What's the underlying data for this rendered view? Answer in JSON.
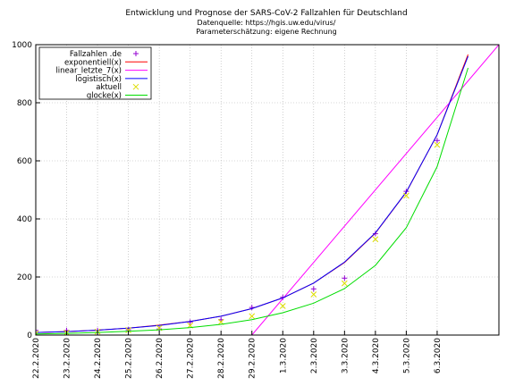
{
  "chart_data": {
    "type": "line",
    "title": "Entwicklung und Prognose der SARS-CoV-2 Fallzahlen für Deutschland",
    "subtitle_lines": [
      "Datenquelle: https://hgis.uw.edu/virus/",
      "Parameterschätzung: eigene Rechnung"
    ],
    "xlabel": "",
    "ylabel": "",
    "categories": [
      "22.2.2020",
      "23.2.2020",
      "24.2.2020",
      "25.2.2020",
      "26.2.2020",
      "27.2.2020",
      "28.2.2020",
      "29.2.2020",
      "1.3.2020",
      "2.3.2020",
      "3.3.2020",
      "4.3.2020",
      "5.3.2020",
      "6.3.2020"
    ],
    "xlim": [
      0,
      15
    ],
    "ylim": [
      0,
      1000
    ],
    "yticks": [
      0,
      200,
      400,
      600,
      800,
      1000
    ],
    "grid": true,
    "legend_position": "top-left",
    "series": [
      {
        "name": "Fallzahlen .de",
        "kind": "points",
        "marker": "plus",
        "color": "#9400d3",
        "x": [
          0,
          1,
          2,
          3,
          4,
          5,
          6,
          7,
          8,
          9,
          10,
          11,
          12,
          13
        ],
        "y": [
          16,
          16,
          16,
          18,
          21,
          45,
          53,
          95,
          130,
          159,
          196,
          349,
          495,
          670
        ]
      },
      {
        "name": "exponentiell(x)",
        "kind": "line",
        "color": "#ff0000",
        "x": [
          0,
          1,
          2,
          3,
          4,
          5,
          6,
          7,
          8,
          9,
          10,
          11,
          12,
          13,
          14
        ],
        "y": [
          9,
          12,
          17,
          24,
          34,
          47,
          65,
          91,
          128,
          179,
          250,
          351,
          492,
          690,
          966
        ]
      },
      {
        "name": "linear_letzte_7(x)",
        "kind": "line",
        "color": "#ff00ff",
        "x": [
          7,
          15
        ],
        "y": [
          0,
          1000
        ]
      },
      {
        "name": "logistisch(x)",
        "kind": "line",
        "color": "#0000ff",
        "x": [
          0,
          1,
          2,
          3,
          4,
          5,
          6,
          7,
          8,
          9,
          10,
          11,
          12,
          13,
          14
        ],
        "y": [
          9,
          12,
          17,
          24,
          33,
          47,
          65,
          91,
          128,
          179,
          251,
          352,
          493,
          690,
          960
        ]
      },
      {
        "name": "aktuell",
        "kind": "points",
        "marker": "x",
        "color": "#dddd00",
        "x": [
          0,
          1,
          2,
          3,
          4,
          5,
          6,
          7,
          8,
          9,
          10,
          11,
          12,
          13
        ],
        "y": [
          5,
          8,
          12,
          17,
          24,
          33,
          45,
          65,
          100,
          140,
          178,
          330,
          480,
          655
        ]
      },
      {
        "name": "glocke(x)",
        "kind": "line",
        "color": "#00dd00",
        "x": [
          0,
          1,
          2,
          3,
          4,
          5,
          6,
          7,
          8,
          9,
          10,
          11,
          12,
          13,
          14
        ],
        "y": [
          4,
          6,
          9,
          13,
          18,
          26,
          37,
          53,
          77,
          110,
          160,
          240,
          370,
          580,
          920
        ]
      }
    ]
  }
}
